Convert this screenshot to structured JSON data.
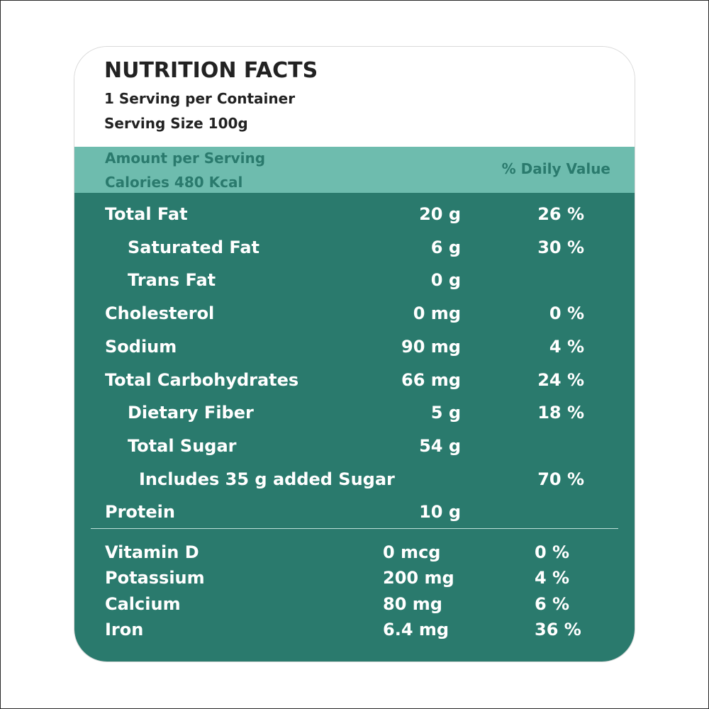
{
  "header": {
    "title": "NUTRITION FACTS",
    "servings": "1 Serving per Container",
    "serving_size": "Serving Size 100g"
  },
  "band": {
    "amount_label": "Amount per Serving",
    "calories": "Calories 480 Kcal",
    "daily_value_label": "% Daily Value"
  },
  "nutrients": [
    {
      "label": "Total Fat",
      "amount": "20 g",
      "dv": "26 %",
      "level": 0
    },
    {
      "label": "Saturated Fat",
      "amount": "6 g",
      "dv": "30 %",
      "level": 1
    },
    {
      "label": "Trans Fat",
      "amount": "0 g",
      "dv": "",
      "level": 1
    },
    {
      "label": "Cholesterol",
      "amount": "0 mg",
      "dv": "0 %",
      "level": 0
    },
    {
      "label": "Sodium",
      "amount": "90 mg",
      "dv": "4 %",
      "level": 0
    },
    {
      "label": "Total Carbohydrates",
      "amount": "66 mg",
      "dv": "24 %",
      "level": 0
    },
    {
      "label": "Dietary Fiber",
      "amount": "5 g",
      "dv": "18 %",
      "level": 1
    },
    {
      "label": "Total Sugar",
      "amount": "54 g",
      "dv": "",
      "level": 1
    },
    {
      "label": "Includes 35 g added Sugar",
      "amount": "",
      "dv": "70 %",
      "level": 2
    },
    {
      "label": "Protein",
      "amount": "10 g",
      "dv": "",
      "level": 0
    }
  ],
  "vitamins": [
    {
      "label": "Vitamin D",
      "amount": "0 mcg",
      "dv": "0 %"
    },
    {
      "label": "Potassium",
      "amount": "200 mg",
      "dv": "4 %"
    },
    {
      "label": "Calcium",
      "amount": "80 mg",
      "dv": "6 %"
    },
    {
      "label": "Iron",
      "amount": "6.4 mg",
      "dv": "36 %"
    }
  ],
  "colors": {
    "band": "#6ebcae",
    "body": "#2a7a6d",
    "text_dark": "#222222",
    "text_light": "#ffffff"
  }
}
